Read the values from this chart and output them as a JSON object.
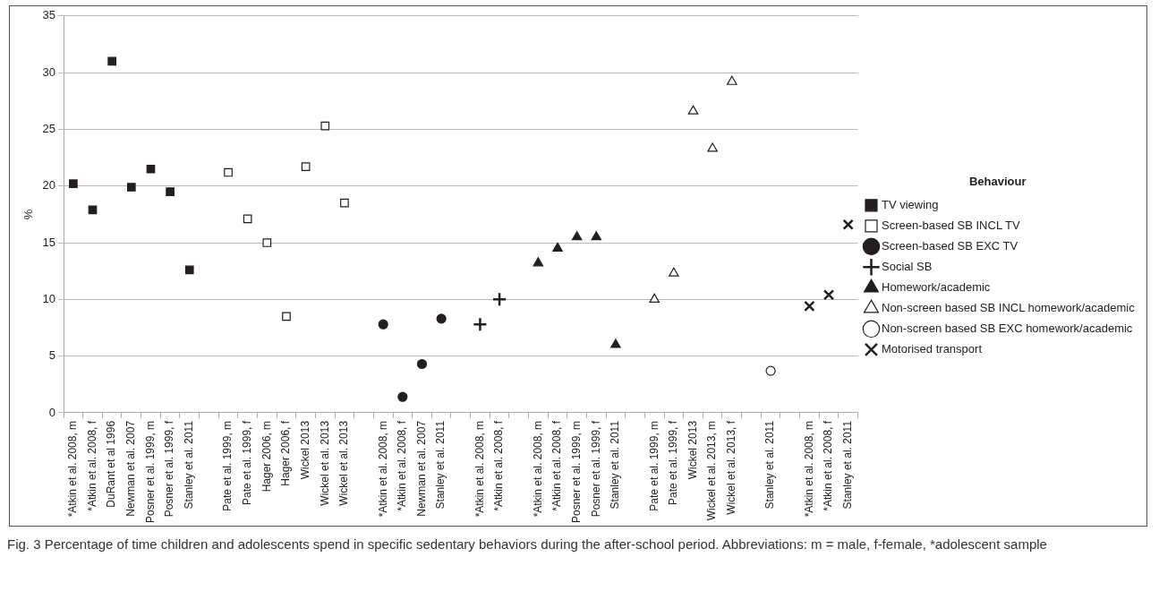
{
  "chart_data": {
    "type": "scatter",
    "ylabel": "%",
    "legend_title": "Behaviour",
    "legend": "right",
    "grid": "y",
    "categories": [
      "*Atkin et al. 2008, m",
      "*Atkin et al. 2008, f",
      "DuRant et al 1996",
      "Newman et al. 2007",
      "Posner et al. 1999, m",
      "Posner et al. 1999, f",
      "Stanley et al. 2011",
      null,
      "Pate et al. 1999, m",
      "Pate et al. 1999, f",
      "Hager 2006, m",
      "Hager 2006, f",
      "Wickel 2013",
      "Wickel et al. 2013",
      "Wickel et al. 2013",
      null,
      "*Atkin et al. 2008, m",
      "*Atkin et al. 2008, f",
      "Newman et al. 2007",
      "Stanley et al. 2011",
      null,
      "*Atkin et al. 2008, m",
      "*Atkin et al. 2008, f",
      null,
      "*Atkin et al. 2008, m",
      "*Atkin et al. 2008, f",
      "Posner et al. 1999, m",
      "Posner et al. 1999, f",
      "Stanley et al. 2011",
      null,
      "Pate et al. 1999, m",
      "Pate et al. 1999, f",
      "Wickel 2013",
      "Wickel et al. 2013, m",
      "Wickel et al. 2013, f",
      null,
      "Stanley et al. 2011",
      null,
      "*Atkin et al. 2008, m",
      "*Atkin et al. 2008, f",
      "Stanley et al. 2011"
    ],
    "ylim": [
      0,
      35
    ],
    "yticks": [
      0,
      5,
      10,
      15,
      20,
      25,
      30,
      35
    ],
    "series": [
      {
        "name": "TV viewing",
        "color": "#231f20",
        "marker": "square",
        "values": [
          20.2,
          17.9,
          31.0,
          19.9,
          21.5,
          19.5,
          12.6,
          null,
          null,
          null,
          null,
          null,
          null,
          null,
          null,
          null,
          null,
          null,
          null,
          null,
          null,
          null,
          null,
          null,
          null,
          null,
          null,
          null,
          null,
          null,
          null,
          null,
          null,
          null,
          null,
          null,
          null,
          null,
          null,
          null,
          null
        ]
      },
      {
        "name": "Screen-based SB INCL TV",
        "color": "#231f20",
        "marker": "square",
        "values": [
          null,
          null,
          null,
          null,
          null,
          null,
          null,
          null,
          21.2,
          17.1,
          15.0,
          8.5,
          21.7,
          25.3,
          18.5,
          null,
          null,
          null,
          null,
          null,
          null,
          null,
          null,
          null,
          null,
          null,
          null,
          null,
          null,
          null,
          null,
          null,
          null,
          null,
          null,
          null,
          null,
          null,
          null,
          null,
          null
        ]
      },
      {
        "name": "Screen-based SB EXC TV",
        "color": "#231f20",
        "marker": "circle",
        "values": [
          null,
          null,
          null,
          null,
          null,
          null,
          null,
          null,
          null,
          null,
          null,
          null,
          null,
          null,
          null,
          null,
          7.8,
          1.4,
          4.3,
          8.3,
          null,
          null,
          null,
          null,
          null,
          null,
          null,
          null,
          null,
          null,
          null,
          null,
          null,
          null,
          null,
          null,
          null,
          null,
          null,
          null,
          null
        ]
      },
      {
        "name": "Social SB",
        "color": "#231f20",
        "marker": "cross",
        "values": [
          null,
          null,
          null,
          null,
          null,
          null,
          null,
          null,
          null,
          null,
          null,
          null,
          null,
          null,
          null,
          null,
          null,
          null,
          null,
          null,
          null,
          7.8,
          10.0,
          null,
          null,
          null,
          null,
          null,
          null,
          null,
          null,
          null,
          null,
          null,
          null,
          null,
          null,
          null,
          null,
          null,
          null
        ]
      },
      {
        "name": "Homework/academic",
        "color": "#231f20",
        "marker": "triangle",
        "values": [
          null,
          null,
          null,
          null,
          null,
          null,
          null,
          null,
          null,
          null,
          null,
          null,
          null,
          null,
          null,
          null,
          null,
          null,
          null,
          null,
          null,
          null,
          null,
          null,
          13.2,
          14.5,
          15.5,
          15.5,
          6.0,
          null,
          null,
          null,
          null,
          null,
          null,
          null,
          null,
          null,
          null,
          null,
          null
        ]
      },
      {
        "name": "Non-screen based SB INCL homework/academic",
        "color": "#231f20",
        "marker": "triangle",
        "values": [
          null,
          null,
          null,
          null,
          null,
          null,
          null,
          null,
          null,
          null,
          null,
          null,
          null,
          null,
          null,
          null,
          null,
          null,
          null,
          null,
          null,
          null,
          null,
          null,
          null,
          null,
          null,
          null,
          null,
          null,
          10.0,
          12.3,
          26.6,
          23.3,
          29.2,
          null,
          null,
          null,
          null,
          null,
          null
        ]
      },
      {
        "name": "Non-screen based SB EXC homework/academic",
        "color": "#231f20",
        "marker": "circle",
        "values": [
          null,
          null,
          null,
          null,
          null,
          null,
          null,
          null,
          null,
          null,
          null,
          null,
          null,
          null,
          null,
          null,
          null,
          null,
          null,
          null,
          null,
          null,
          null,
          null,
          null,
          null,
          null,
          null,
          null,
          null,
          null,
          null,
          null,
          null,
          null,
          null,
          3.7,
          null,
          null,
          null,
          null
        ]
      },
      {
        "name": "Motorised transport",
        "color": "#231f20",
        "marker": "cross",
        "values": [
          null,
          null,
          null,
          null,
          null,
          null,
          null,
          null,
          null,
          null,
          null,
          null,
          null,
          null,
          null,
          null,
          null,
          null,
          null,
          null,
          null,
          null,
          null,
          null,
          null,
          null,
          null,
          null,
          null,
          null,
          null,
          null,
          null,
          null,
          null,
          null,
          null,
          null,
          9.4,
          10.4,
          16.6
        ]
      }
    ],
    "annotations": [
      "Fig. 3 Percentage of time children and adolescents spend in specific sedentary behaviors during the after-school period. Abbreviations: m = male, f-female, *adolescent sample"
    ]
  }
}
